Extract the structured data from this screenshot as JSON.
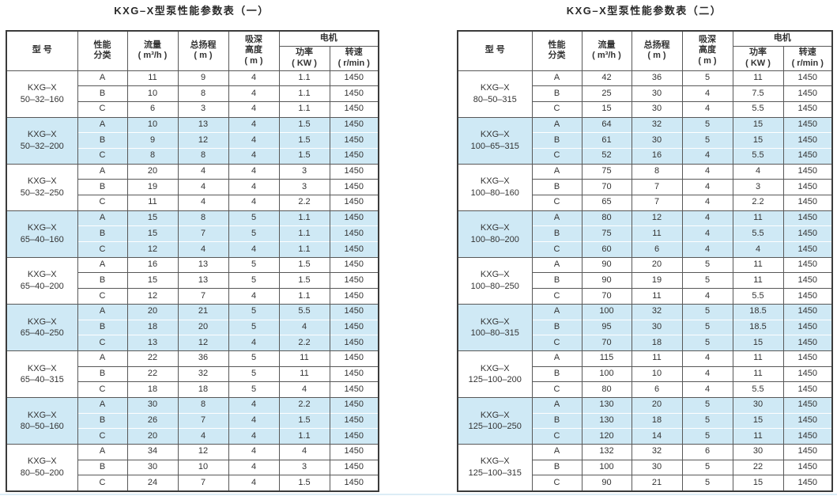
{
  "colors": {
    "stripe": "#cfe9f5",
    "grid": "#585858",
    "outer_border": "#3b3b3b",
    "text": "#333333",
    "background": "#ffffff"
  },
  "columns": {
    "model": "型  号",
    "class_lines": [
      "性能",
      "分类"
    ],
    "flow_lines": [
      "流量",
      "( m³/h )"
    ],
    "head_lines": [
      "总扬程",
      "( m )"
    ],
    "suction_lines": [
      "吸深",
      "高度",
      "( m )"
    ],
    "motor": "电机",
    "power_lines": [
      "功率",
      "( KW )"
    ],
    "speed_lines": [
      "转速",
      "( r/min )"
    ]
  },
  "tables": [
    {
      "title": "KXG–X型泵性能参数表（一）",
      "groups": [
        {
          "model": [
            "KXG–X",
            "50–32–160"
          ],
          "striped": false,
          "rows": [
            [
              "A",
              "11",
              "9",
              "4",
              "1.1",
              "1450"
            ],
            [
              "B",
              "10",
              "8",
              "4",
              "1.1",
              "1450"
            ],
            [
              "C",
              "6",
              "3",
              "4",
              "1.1",
              "1450"
            ]
          ]
        },
        {
          "model": [
            "KXG–X",
            "50–32–200"
          ],
          "striped": true,
          "rows": [
            [
              "A",
              "10",
              "13",
              "4",
              "1.5",
              "1450"
            ],
            [
              "B",
              "9",
              "12",
              "4",
              "1.5",
              "1450"
            ],
            [
              "C",
              "8",
              "8",
              "4",
              "1.5",
              "1450"
            ]
          ]
        },
        {
          "model": [
            "KXG–X",
            "50–32–250"
          ],
          "striped": false,
          "rows": [
            [
              "A",
              "20",
              "4",
              "4",
              "3",
              "1450"
            ],
            [
              "B",
              "19",
              "4",
              "4",
              "3",
              "1450"
            ],
            [
              "C",
              "11",
              "4",
              "4",
              "2.2",
              "1450"
            ]
          ]
        },
        {
          "model": [
            "KXG–X",
            "65–40–160"
          ],
          "striped": true,
          "rows": [
            [
              "A",
              "15",
              "8",
              "5",
              "1.1",
              "1450"
            ],
            [
              "B",
              "15",
              "7",
              "5",
              "1.1",
              "1450"
            ],
            [
              "C",
              "12",
              "4",
              "4",
              "1.1",
              "1450"
            ]
          ]
        },
        {
          "model": [
            "KXG–X",
            "65–40–200"
          ],
          "striped": false,
          "rows": [
            [
              "A",
              "16",
              "13",
              "5",
              "1.5",
              "1450"
            ],
            [
              "B",
              "15",
              "13",
              "5",
              "1.5",
              "1450"
            ],
            [
              "C",
              "12",
              "7",
              "4",
              "1.1",
              "1450"
            ]
          ]
        },
        {
          "model": [
            "KXG–X",
            "65–40–250"
          ],
          "striped": true,
          "rows": [
            [
              "A",
              "20",
              "21",
              "5",
              "5.5",
              "1450"
            ],
            [
              "B",
              "18",
              "20",
              "5",
              "4",
              "1450"
            ],
            [
              "C",
              "13",
              "12",
              "4",
              "2.2",
              "1450"
            ]
          ]
        },
        {
          "model": [
            "KXG–X",
            "65–40–315"
          ],
          "striped": false,
          "rows": [
            [
              "A",
              "22",
              "36",
              "5",
              "11",
              "1450"
            ],
            [
              "B",
              "22",
              "32",
              "5",
              "11",
              "1450"
            ],
            [
              "C",
              "18",
              "18",
              "5",
              "4",
              "1450"
            ]
          ]
        },
        {
          "model": [
            "KXG–X",
            "80–50–160"
          ],
          "striped": true,
          "rows": [
            [
              "A",
              "30",
              "8",
              "4",
              "2.2",
              "1450"
            ],
            [
              "B",
              "26",
              "7",
              "4",
              "1.5",
              "1450"
            ],
            [
              "C",
              "20",
              "4",
              "4",
              "1.1",
              "1450"
            ]
          ]
        },
        {
          "model": [
            "KXG–X",
            "80–50–200"
          ],
          "striped": false,
          "rows": [
            [
              "A",
              "34",
              "12",
              "4",
              "4",
              "1450"
            ],
            [
              "B",
              "30",
              "10",
              "4",
              "3",
              "1450"
            ],
            [
              "C",
              "24",
              "7",
              "4",
              "1.5",
              "1450"
            ]
          ]
        }
      ]
    },
    {
      "title": "KXG–X型泵性能参数表（二）",
      "groups": [
        {
          "model": [
            "KXG–X",
            "80–50–315"
          ],
          "striped": false,
          "rows": [
            [
              "A",
              "42",
              "36",
              "5",
              "11",
              "1450"
            ],
            [
              "B",
              "25",
              "30",
              "4",
              "7.5",
              "1450"
            ],
            [
              "C",
              "15",
              "30",
              "4",
              "5.5",
              "1450"
            ]
          ]
        },
        {
          "model": [
            "KXG–X",
            "100–65–315"
          ],
          "striped": true,
          "rows": [
            [
              "A",
              "64",
              "32",
              "5",
              "15",
              "1450"
            ],
            [
              "B",
              "61",
              "30",
              "5",
              "15",
              "1450"
            ],
            [
              "C",
              "52",
              "16",
              "4",
              "5.5",
              "1450"
            ]
          ]
        },
        {
          "model": [
            "KXG–X",
            "100–80–160"
          ],
          "striped": false,
          "rows": [
            [
              "A",
              "75",
              "8",
              "4",
              "4",
              "1450"
            ],
            [
              "B",
              "70",
              "7",
              "4",
              "3",
              "1450"
            ],
            [
              "C",
              "65",
              "7",
              "4",
              "2.2",
              "1450"
            ]
          ]
        },
        {
          "model": [
            "KXG–X",
            "100–80–200"
          ],
          "striped": true,
          "rows": [
            [
              "A",
              "80",
              "12",
              "4",
              "11",
              "1450"
            ],
            [
              "B",
              "75",
              "11",
              "4",
              "5.5",
              "1450"
            ],
            [
              "C",
              "60",
              "6",
              "4",
              "4",
              "1450"
            ]
          ]
        },
        {
          "model": [
            "KXG–X",
            "100–80–250"
          ],
          "striped": false,
          "rows": [
            [
              "A",
              "90",
              "20",
              "5",
              "11",
              "1450"
            ],
            [
              "B",
              "90",
              "19",
              "5",
              "11",
              "1450"
            ],
            [
              "C",
              "70",
              "11",
              "4",
              "5.5",
              "1450"
            ]
          ]
        },
        {
          "model": [
            "KXG–X",
            "100–80–315"
          ],
          "striped": true,
          "rows": [
            [
              "A",
              "100",
              "32",
              "5",
              "18.5",
              "1450"
            ],
            [
              "B",
              "95",
              "30",
              "5",
              "18.5",
              "1450"
            ],
            [
              "C",
              "70",
              "18",
              "5",
              "15",
              "1450"
            ]
          ]
        },
        {
          "model": [
            "KXG–X",
            "125–100–200"
          ],
          "striped": false,
          "rows": [
            [
              "A",
              "115",
              "11",
              "4",
              "11",
              "1450"
            ],
            [
              "B",
              "100",
              "10",
              "4",
              "11",
              "1450"
            ],
            [
              "C",
              "80",
              "6",
              "4",
              "5.5",
              "1450"
            ]
          ]
        },
        {
          "model": [
            "KXG–X",
            "125–100–250"
          ],
          "striped": true,
          "rows": [
            [
              "A",
              "130",
              "20",
              "5",
              "30",
              "1450"
            ],
            [
              "B",
              "130",
              "18",
              "5",
              "15",
              "1450"
            ],
            [
              "C",
              "120",
              "14",
              "5",
              "11",
              "1450"
            ]
          ]
        },
        {
          "model": [
            "KXG–X",
            "125–100–315"
          ],
          "striped": false,
          "rows": [
            [
              "A",
              "132",
              "32",
              "6",
              "30",
              "1450"
            ],
            [
              "B",
              "100",
              "30",
              "5",
              "22",
              "1450"
            ],
            [
              "C",
              "90",
              "21",
              "5",
              "15",
              "1450"
            ]
          ]
        }
      ]
    }
  ]
}
